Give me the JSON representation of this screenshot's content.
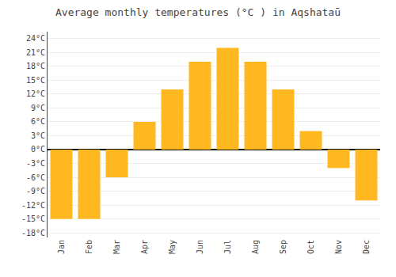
{
  "chart_data": {
    "type": "bar",
    "title": "Average monthly temperatures (°C ) in Aqshataū",
    "categories": [
      "Jan",
      "Feb",
      "Mar",
      "Apr",
      "May",
      "Jun",
      "Jul",
      "Aug",
      "Sep",
      "Oct",
      "Nov",
      "Dec"
    ],
    "values": [
      -15,
      -15,
      -6,
      6,
      13,
      19,
      22,
      19,
      13,
      4,
      -4,
      -11
    ],
    "color": "#FFB820",
    "ylim": [
      -19,
      25.5
    ],
    "yticks": [
      {
        "value": -18,
        "label": "-18°C"
      },
      {
        "value": -15,
        "label": "-15°C"
      },
      {
        "value": -12,
        "label": "-12°C"
      },
      {
        "value": -9,
        "label": "-9°C"
      },
      {
        "value": -6,
        "label": "-6°C"
      },
      {
        "value": -3,
        "label": "-3°C"
      },
      {
        "value": 0,
        "label": "0°C"
      },
      {
        "value": 3,
        "label": "3°C"
      },
      {
        "value": 6,
        "label": "6°C"
      },
      {
        "value": 9,
        "label": "9°C"
      },
      {
        "value": 12,
        "label": "12°C"
      },
      {
        "value": 15,
        "label": "15°C"
      },
      {
        "value": 18,
        "label": "18°C"
      },
      {
        "value": 21,
        "label": "21°C"
      },
      {
        "value": 24,
        "label": "24°C"
      }
    ],
    "grid": true
  }
}
